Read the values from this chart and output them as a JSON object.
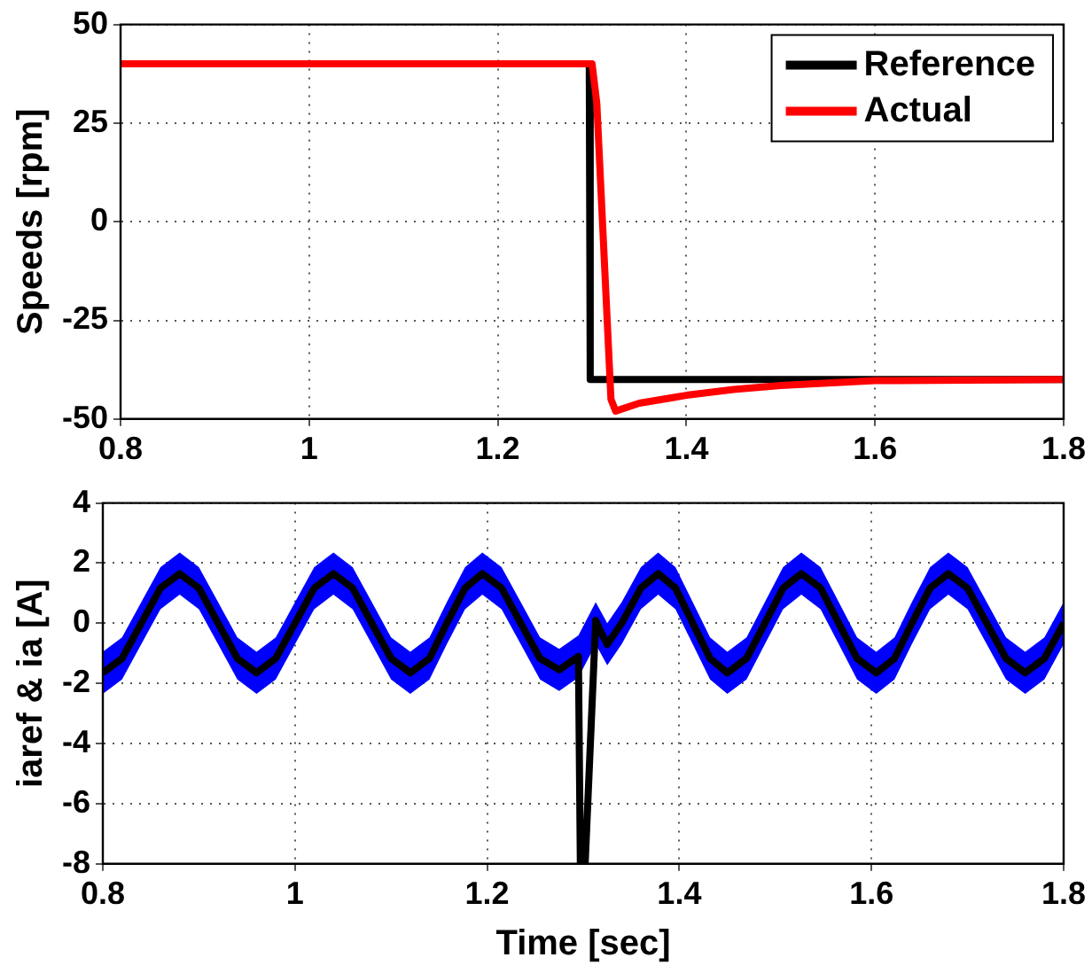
{
  "chart_data": [
    {
      "type": "line",
      "ylabel": "Speeds [rpm]",
      "xlim": [
        0.8,
        1.8
      ],
      "xticks": [
        0.8,
        1,
        1.2,
        1.4,
        1.6,
        1.8
      ],
      "ylim": [
        -50,
        50
      ],
      "yticks": [
        -50,
        -25,
        0,
        25,
        50
      ],
      "grid": true,
      "legend": "top right",
      "series": [
        {
          "name": "Reference",
          "color": "#000000",
          "x": [
            0.8,
            1.297,
            1.298,
            1.8
          ],
          "values": [
            40,
            40,
            -40,
            -40
          ]
        },
        {
          "name": "Actual",
          "color": "#ff0000",
          "x": [
            0.8,
            1.3,
            1.305,
            1.32,
            1.325,
            1.35,
            1.4,
            1.45,
            1.5,
            1.6,
            1.8
          ],
          "values": [
            40,
            40,
            30,
            -45,
            -48,
            -46,
            -44,
            -42.5,
            -41.5,
            -40.3,
            -40
          ]
        }
      ]
    },
    {
      "type": "line",
      "xlabel": "Time [sec]",
      "ylabel": "iaref & ia [A]",
      "xlim": [
        0.8,
        1.8
      ],
      "xticks": [
        0.8,
        1,
        1.2,
        1.4,
        1.6,
        1.8
      ],
      "ylim": [
        -8,
        4
      ],
      "yticks": [
        -8,
        -6,
        -4,
        -2,
        0,
        2,
        4
      ],
      "grid": true,
      "series": [
        {
          "color": "#0000ff",
          "x": [
            0.8,
            0.82,
            0.84,
            0.86,
            0.88,
            0.9,
            0.92,
            0.94,
            0.96,
            0.98,
            1.0,
            1.02,
            1.04,
            1.06,
            1.08,
            1.1,
            1.12,
            1.14,
            1.158,
            1.177,
            1.195,
            1.215,
            1.235,
            1.255,
            1.275,
            1.295,
            1.313,
            1.325,
            1.34,
            1.36,
            1.378,
            1.396,
            1.414,
            1.432,
            1.45,
            1.47,
            1.489,
            1.508,
            1.527,
            1.547,
            1.566,
            1.585,
            1.605,
            1.624,
            1.642,
            1.661,
            1.68,
            1.7,
            1.72,
            1.74,
            1.76,
            1.78,
            1.8
          ],
          "values": [
            null,
            null,
            null,
            null,
            null,
            null,
            null,
            null,
            null,
            null,
            null,
            null,
            null,
            null,
            null,
            null,
            null,
            null,
            null,
            null,
            null,
            null,
            null,
            null,
            null,
            null,
            null,
            null,
            null,
            null,
            null,
            null,
            null,
            null,
            null,
            null,
            null,
            null,
            null,
            null,
            null,
            null,
            null,
            null,
            null,
            null,
            null,
            null,
            null,
            null,
            null,
            null,
            null
          ],
          "lower": [
            -2.35,
            -1.87,
            -0.7,
            0.47,
            0.95,
            0.47,
            -0.7,
            -1.87,
            -2.35,
            -1.87,
            -0.7,
            0.47,
            0.95,
            0.47,
            -0.7,
            -1.87,
            -2.35,
            -1.87,
            -0.7,
            0.47,
            0.95,
            0.47,
            -0.7,
            -1.87,
            -2.25,
            -1.8,
            -0.7,
            -1.4,
            -0.7,
            0.47,
            0.95,
            0.47,
            -0.7,
            -1.87,
            -2.35,
            -1.87,
            -0.7,
            0.47,
            0.95,
            0.47,
            -0.7,
            -1.87,
            -2.35,
            -1.87,
            -0.7,
            0.47,
            0.95,
            0.47,
            -0.7,
            -1.87,
            -2.35,
            -1.87,
            -0.7
          ],
          "upper": [
            -0.95,
            -0.47,
            0.7,
            1.87,
            2.35,
            1.87,
            0.7,
            -0.47,
            -0.95,
            -0.47,
            0.7,
            1.87,
            2.35,
            1.87,
            0.7,
            -0.47,
            -0.95,
            -0.47,
            0.7,
            1.87,
            2.35,
            1.87,
            0.7,
            -0.47,
            -0.85,
            -0.4,
            0.7,
            0,
            0.7,
            1.87,
            2.35,
            1.87,
            0.7,
            -0.47,
            -0.95,
            -0.47,
            0.7,
            1.87,
            2.35,
            1.87,
            0.7,
            -0.47,
            -0.95,
            -0.47,
            0.7,
            1.87,
            2.35,
            1.87,
            0.7,
            -0.47,
            -0.95,
            -0.47,
            0.7
          ]
        },
        {
          "color": "#000000",
          "x": [
            0.8,
            0.82,
            0.84,
            0.86,
            0.88,
            0.9,
            0.92,
            0.94,
            0.96,
            0.98,
            1.0,
            1.02,
            1.04,
            1.06,
            1.08,
            1.1,
            1.12,
            1.14,
            1.158,
            1.177,
            1.195,
            1.215,
            1.235,
            1.255,
            1.275,
            1.295,
            1.297,
            1.302,
            1.313,
            1.317,
            1.325,
            1.34,
            1.36,
            1.378,
            1.396,
            1.414,
            1.432,
            1.45,
            1.47,
            1.489,
            1.508,
            1.527,
            1.547,
            1.566,
            1.585,
            1.605,
            1.624,
            1.642,
            1.661,
            1.68,
            1.7,
            1.72,
            1.74,
            1.76,
            1.78,
            1.8
          ],
          "values": [
            -1.65,
            -1.17,
            0,
            1.17,
            1.65,
            1.17,
            0,
            -1.17,
            -1.65,
            -1.17,
            0,
            1.17,
            1.65,
            1.17,
            0,
            -1.17,
            -1.65,
            -1.17,
            0,
            1.17,
            1.65,
            1.17,
            0,
            -1.17,
            -1.55,
            -1.1,
            -8,
            -8,
            0.1,
            -0.2,
            -0.7,
            0,
            1.17,
            1.65,
            1.17,
            0,
            -1.17,
            -1.65,
            -1.17,
            0,
            1.17,
            1.65,
            1.17,
            0,
            -1.17,
            -1.65,
            -1.17,
            0,
            1.17,
            1.65,
            1.17,
            0,
            -1.17,
            -1.65,
            -1.17,
            0
          ]
        }
      ]
    }
  ]
}
